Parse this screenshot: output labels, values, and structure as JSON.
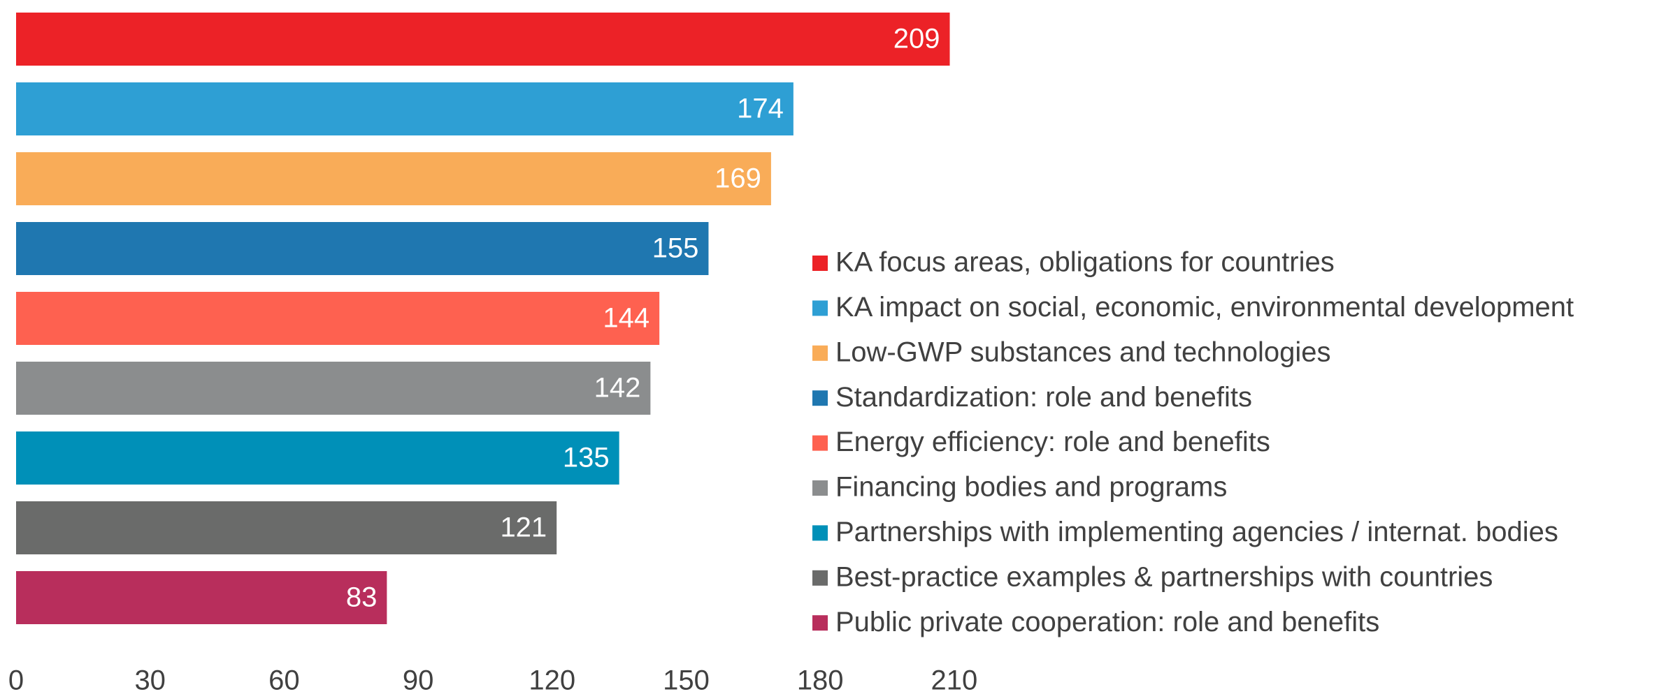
{
  "chart_data": {
    "type": "bar",
    "orientation": "horizontal",
    "categories": [
      "KA focus areas, obligations for countries",
      "KA impact on social, economic, environmental development",
      "Low-GWP substances and technologies",
      "Standardization: role and benefits",
      "Energy efficiency: role and benefits",
      "Financing bodies and programs",
      "Partnerships with implementing agencies / internat. bodies",
      "Best-practice examples & partnerships with countries",
      "Public private cooperation: role and benefits"
    ],
    "values": [
      209,
      174,
      169,
      155,
      144,
      142,
      135,
      121,
      83
    ],
    "colors": [
      "#ec2227",
      "#2e9fd4",
      "#f9ac58",
      "#1f77b0",
      "#fe6150",
      "#8b8d8e",
      "#0090b8",
      "#6a6b6a",
      "#b82e5c"
    ],
    "xlim": [
      0,
      210
    ],
    "xticks": [
      0,
      30,
      60,
      90,
      120,
      150,
      180,
      210
    ],
    "grid": false,
    "legend": "right"
  }
}
